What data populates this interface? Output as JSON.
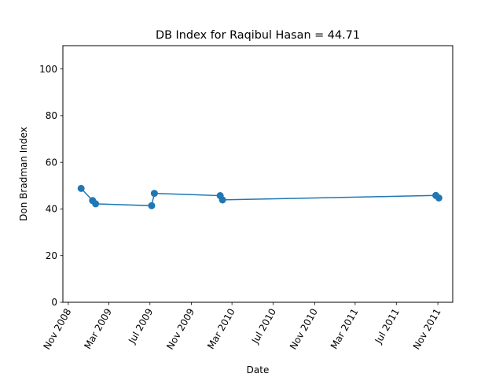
{
  "chart_data": {
    "type": "line",
    "title": "DB Index for Raqibul Hasan = 44.71",
    "xlabel": "Date",
    "ylabel": "Don Bradman Index",
    "ylim": [
      0,
      110
    ],
    "xlim": [
      "2008-10-16",
      "2011-12-15"
    ],
    "yticks": [
      0,
      20,
      40,
      60,
      80,
      100
    ],
    "xticks": [
      {
        "date": "2008-11-01",
        "label": "Nov 2008"
      },
      {
        "date": "2009-03-01",
        "label": "Mar 2009"
      },
      {
        "date": "2009-07-01",
        "label": "Jul 2009"
      },
      {
        "date": "2009-11-01",
        "label": "Nov 2009"
      },
      {
        "date": "2010-03-01",
        "label": "Mar 2010"
      },
      {
        "date": "2010-07-01",
        "label": "Jul 2010"
      },
      {
        "date": "2010-11-01",
        "label": "Nov 2010"
      },
      {
        "date": "2011-03-01",
        "label": "Mar 2011"
      },
      {
        "date": "2011-07-01",
        "label": "Jul 2011"
      },
      {
        "date": "2011-11-01",
        "label": "Nov 2011"
      }
    ],
    "grid": false,
    "color": "#1f77b4",
    "series": [
      {
        "name": "",
        "points": [
          {
            "x": "2008-12-09",
            "y": 48.8
          },
          {
            "x": "2009-01-12",
            "y": 43.6
          },
          {
            "x": "2009-01-21",
            "y": 42.2
          },
          {
            "x": "2009-07-06",
            "y": 41.4
          },
          {
            "x": "2009-07-14",
            "y": 46.7
          },
          {
            "x": "2010-01-25",
            "y": 45.7
          },
          {
            "x": "2010-02-01",
            "y": 43.9
          },
          {
            "x": "2011-10-26",
            "y": 45.8
          },
          {
            "x": "2011-11-04",
            "y": 44.71
          }
        ]
      }
    ]
  }
}
